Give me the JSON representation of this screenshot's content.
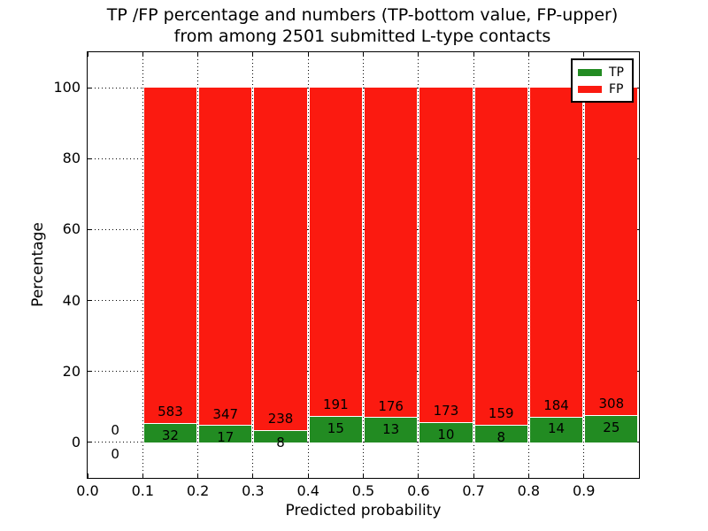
{
  "title": {
    "line1": "TP /FP percentage and numbers (TP-bottom value, FP-upper)",
    "line2": "from among 2501 submitted L-type contacts"
  },
  "axes": {
    "xlabel": "Predicted probability",
    "ylabel": "Percentage"
  },
  "legend": {
    "position": "upper-right",
    "entries": [
      {
        "label": "TP",
        "color": "#228b22"
      },
      {
        "label": "FP",
        "color": "#fb1a10"
      }
    ]
  },
  "chart_data": {
    "type": "bar",
    "subtype": "stacked-normalized-percent",
    "title": "TP /FP percentage and numbers (TP-bottom value, FP-upper) from among 2501 submitted L-type contacts",
    "xlabel": "Predicted probability",
    "ylabel": "Percentage",
    "xlim": [
      0.0,
      1.0
    ],
    "ylim": [
      -10,
      110
    ],
    "xticks": [
      "0.0",
      "0.1",
      "0.2",
      "0.3",
      "0.4",
      "0.5",
      "0.6",
      "0.7",
      "0.8",
      "0.9"
    ],
    "yticks": [
      0,
      20,
      40,
      60,
      80,
      100
    ],
    "grid": "dotted",
    "legend_position": "upper right",
    "total_contacts": 2501,
    "bin_edges": [
      0.0,
      0.1,
      0.2,
      0.3,
      0.4,
      0.5,
      0.6,
      0.7,
      0.8,
      0.9,
      1.0
    ],
    "series": [
      {
        "name": "TP",
        "color": "#228b22",
        "counts": [
          0,
          32,
          17,
          8,
          15,
          13,
          10,
          8,
          14,
          25
        ]
      },
      {
        "name": "FP",
        "color": "#fb1a10",
        "counts": [
          0,
          583,
          347,
          238,
          191,
          176,
          173,
          159,
          184,
          308
        ]
      }
    ],
    "bar_height_rule": "green TP segment height = TP/(TP+FP)*100, red FP fills to 100%"
  }
}
